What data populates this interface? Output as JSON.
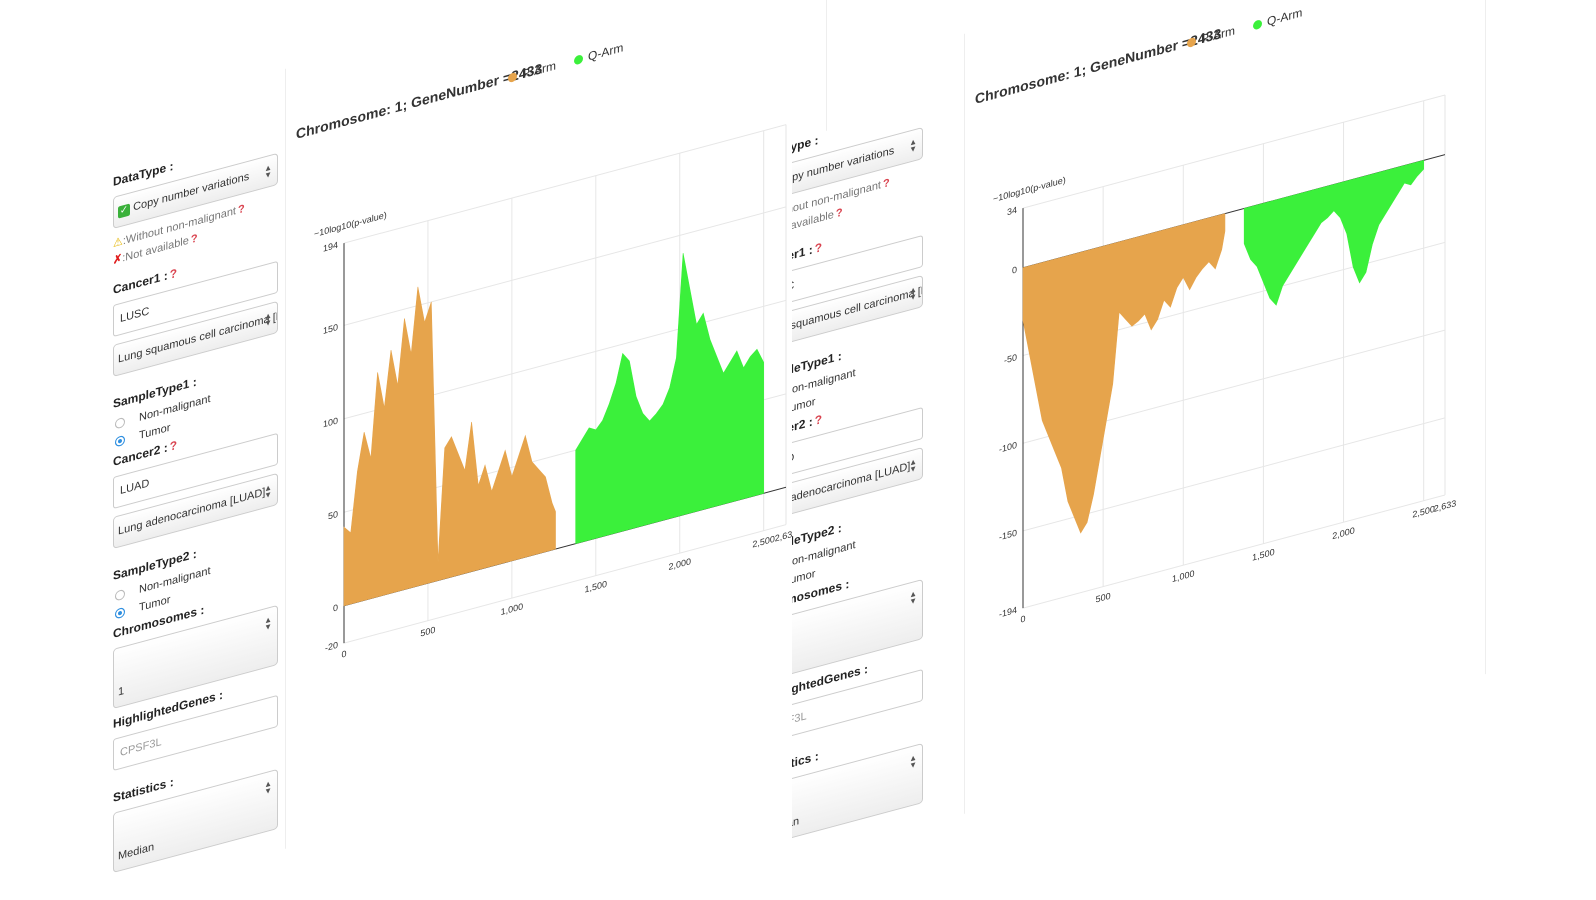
{
  "sidebar": {
    "datatype_label": "DataType :",
    "datatype_value": "Copy number variations",
    "note_without": ":Without non-malignant",
    "note_na": ":Not available",
    "cancer1_label": "Cancer1 :",
    "cancer1_input": "LUSC",
    "cancer1_select": "Lung squamous cell carcinoma [LUSC]",
    "sampletype1_label": "SampleType1 :",
    "sampletype2_label": "SampleType2 :",
    "radio_nonmalignant": "Non-malignant",
    "radio_tumor": "Tumor",
    "cancer2_label": "Cancer2 :",
    "cancer2_input": "LUAD",
    "cancer2_select": "Lung adenocarcinoma [LUAD]",
    "chromosomes_label": "Chromosomes :",
    "chromosomes_value": "1",
    "highlighted_label": "HighlightedGenes :",
    "highlighted_placeholder": "CPSF3L",
    "statistics_label": "Statistics :",
    "statistics_value": "Median"
  },
  "chart_data": [
    {
      "type": "area",
      "title": "Chromosome: 1; GeneNumber =2433",
      "ylabel": "−10log10(p-value)",
      "ylim": [
        -20,
        194
      ],
      "xlim": [
        0,
        2633
      ],
      "yticks": [
        "194",
        "150",
        "100",
        "50",
        "0",
        "-20"
      ],
      "xticks": [
        "0",
        "500",
        "1,000",
        "1,500",
        "2,000",
        "2,500",
        "2,633"
      ],
      "legend": "top-center",
      "series": [
        {
          "name": "P-Arm",
          "color": "#e6a44c",
          "x": [
            0,
            40,
            80,
            120,
            160,
            200,
            240,
            280,
            320,
            360,
            400,
            440,
            480,
            520,
            560,
            600,
            640,
            680,
            720,
            760,
            800,
            840,
            880,
            920,
            960,
            1000,
            1040,
            1080,
            1120,
            1160,
            1200,
            1240,
            1260
          ],
          "y": [
            42,
            38,
            70,
            90,
            75,
            120,
            100,
            130,
            110,
            145,
            125,
            160,
            140,
            150,
            10,
            70,
            75,
            65,
            55,
            80,
            45,
            55,
            40,
            50,
            60,
            45,
            55,
            65,
            50,
            45,
            40,
            25,
            20
          ]
        },
        {
          "name": "Q-Arm",
          "color": "#3bf03b",
          "x": [
            1380,
            1420,
            1460,
            1500,
            1540,
            1580,
            1620,
            1660,
            1700,
            1740,
            1780,
            1820,
            1860,
            1900,
            1940,
            1980,
            2020,
            2060,
            2100,
            2140,
            2180,
            2220,
            2260,
            2300,
            2340,
            2380,
            2420,
            2460,
            2500
          ],
          "y": [
            50,
            55,
            60,
            58,
            62,
            70,
            80,
            95,
            90,
            70,
            60,
            55,
            58,
            62,
            70,
            85,
            140,
            120,
            100,
            105,
            90,
            80,
            70,
            75,
            80,
            70,
            75,
            78,
            70
          ]
        }
      ]
    },
    {
      "type": "area",
      "title": "Chromosome: 1; GeneNumber =2433",
      "ylabel": "−10log10(p-value)",
      "ylim": [
        -194,
        34
      ],
      "xlim": [
        0,
        2633
      ],
      "yticks": [
        "34",
        "0",
        "-50",
        "-100",
        "-150",
        "-194"
      ],
      "xticks": [
        "0",
        "500",
        "1,000",
        "1,500",
        "2,000",
        "2,500",
        "2,633"
      ],
      "legend": "top-center",
      "series": [
        {
          "name": "P-Arm",
          "color": "#e6a44c",
          "x": [
            0,
            40,
            80,
            120,
            160,
            200,
            240,
            280,
            320,
            360,
            400,
            440,
            480,
            520,
            560,
            600,
            640,
            680,
            720,
            760,
            800,
            840,
            880,
            920,
            960,
            1000,
            1040,
            1080,
            1120,
            1160,
            1200,
            1240,
            1260
          ],
          "y": [
            -30,
            -50,
            -70,
            -90,
            -100,
            -110,
            -120,
            -140,
            -150,
            -160,
            -155,
            -140,
            -120,
            -100,
            -80,
            -40,
            -45,
            -50,
            -48,
            -45,
            -55,
            -50,
            -40,
            -45,
            -35,
            -30,
            -38,
            -32,
            -28,
            -25,
            -30,
            -20,
            -10
          ]
        },
        {
          "name": "Q-Arm",
          "color": "#3bf03b",
          "x": [
            1380,
            1420,
            1460,
            1500,
            1540,
            1580,
            1620,
            1660,
            1700,
            1740,
            1780,
            1820,
            1860,
            1900,
            1940,
            1980,
            2020,
            2060,
            2100,
            2140,
            2180,
            2220,
            2260,
            2300,
            2340,
            2380,
            2420,
            2460,
            2500
          ],
          "y": [
            -20,
            -30,
            -35,
            -45,
            -55,
            -60,
            -50,
            -45,
            -40,
            -35,
            -30,
            -25,
            -20,
            -18,
            -15,
            -20,
            -30,
            -50,
            -60,
            -55,
            -40,
            -30,
            -25,
            -20,
            -15,
            -10,
            -12,
            -8,
            -5
          ]
        }
      ]
    }
  ]
}
